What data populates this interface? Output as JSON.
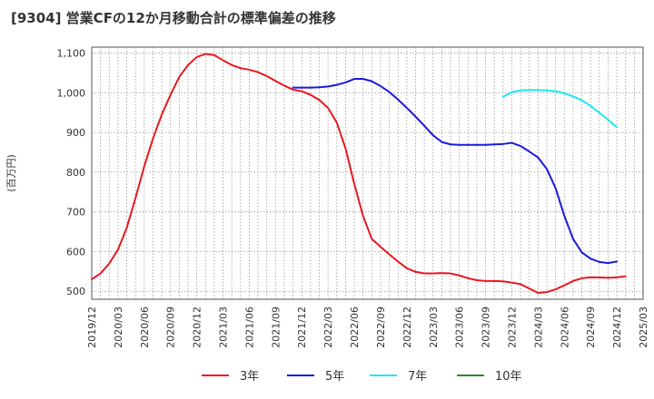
{
  "title": "[9304]  営業CFの12か月移動合計の標準偏差の推移",
  "chart_data": {
    "type": "line",
    "ylabel": "(百万円)",
    "ylim": [
      480,
      1115
    ],
    "yticks": [
      500,
      600,
      700,
      800,
      900,
      1000,
      1100
    ],
    "ytick_labels": [
      "500",
      "600",
      "700",
      "800",
      "900",
      "1,000",
      "1,100"
    ],
    "xlim": [
      "2019-12",
      "2025-03"
    ],
    "xticks": [
      "2019/12",
      "2020/03",
      "2020/06",
      "2020/09",
      "2020/12",
      "2021/03",
      "2021/06",
      "2021/09",
      "2021/12",
      "2022/03",
      "2022/06",
      "2022/09",
      "2022/12",
      "2023/03",
      "2023/06",
      "2023/09",
      "2023/12",
      "2024/03",
      "2024/06",
      "2024/09",
      "2024/12",
      "2025/03"
    ],
    "grid": true,
    "legend_position": "bottom",
    "series": [
      {
        "name": "3年",
        "color": "#e8191e",
        "points": [
          [
            "2019-12",
            530
          ],
          [
            "2020-01",
            545
          ],
          [
            "2020-02",
            570
          ],
          [
            "2020-03",
            605
          ],
          [
            "2020-04",
            660
          ],
          [
            "2020-05",
            735
          ],
          [
            "2020-06",
            815
          ],
          [
            "2020-07",
            885
          ],
          [
            "2020-08",
            945
          ],
          [
            "2020-09",
            995
          ],
          [
            "2020-10",
            1040
          ],
          [
            "2020-11",
            1070
          ],
          [
            "2020-12",
            1090
          ],
          [
            "2021-01",
            1098
          ],
          [
            "2021-02",
            1095
          ],
          [
            "2021-03",
            1082
          ],
          [
            "2021-04",
            1070
          ],
          [
            "2021-05",
            1062
          ],
          [
            "2021-06",
            1058
          ],
          [
            "2021-07",
            1052
          ],
          [
            "2021-08",
            1042
          ],
          [
            "2021-09",
            1030
          ],
          [
            "2021-10",
            1018
          ],
          [
            "2021-11",
            1008
          ],
          [
            "2021-12",
            1004
          ],
          [
            "2022-01",
            995
          ],
          [
            "2022-02",
            982
          ],
          [
            "2022-03",
            962
          ],
          [
            "2022-04",
            925
          ],
          [
            "2022-05",
            860
          ],
          [
            "2022-06",
            770
          ],
          [
            "2022-07",
            690
          ],
          [
            "2022-08",
            632
          ],
          [
            "2022-09",
            612
          ],
          [
            "2022-10",
            593
          ],
          [
            "2022-11",
            575
          ],
          [
            "2022-12",
            558
          ],
          [
            "2023-01",
            549
          ],
          [
            "2023-02",
            545
          ],
          [
            "2023-03",
            545
          ],
          [
            "2023-04",
            546
          ],
          [
            "2023-05",
            545
          ],
          [
            "2023-06",
            540
          ],
          [
            "2023-07",
            533
          ],
          [
            "2023-08",
            528
          ],
          [
            "2023-09",
            526
          ],
          [
            "2023-10",
            526
          ],
          [
            "2023-11",
            525
          ],
          [
            "2023-12",
            522
          ],
          [
            "2024-01",
            518
          ],
          [
            "2024-02",
            507
          ],
          [
            "2024-03",
            496
          ],
          [
            "2024-04",
            498
          ],
          [
            "2024-05",
            505
          ],
          [
            "2024-06",
            515
          ],
          [
            "2024-07",
            526
          ],
          [
            "2024-08",
            533
          ],
          [
            "2024-09",
            535
          ],
          [
            "2024-10",
            535
          ],
          [
            "2024-11",
            534
          ],
          [
            "2024-12",
            535
          ],
          [
            "2025-01",
            538
          ]
        ]
      },
      {
        "name": "5年",
        "color": "#1a1adb",
        "points": [
          [
            "2021-11",
            1013
          ],
          [
            "2021-12",
            1013
          ],
          [
            "2022-01",
            1013
          ],
          [
            "2022-02",
            1014
          ],
          [
            "2022-03",
            1016
          ],
          [
            "2022-04",
            1020
          ],
          [
            "2022-05",
            1026
          ],
          [
            "2022-06",
            1035
          ],
          [
            "2022-07",
            1035
          ],
          [
            "2022-08",
            1029
          ],
          [
            "2022-09",
            1017
          ],
          [
            "2022-10",
            1002
          ],
          [
            "2022-11",
            983
          ],
          [
            "2022-12",
            962
          ],
          [
            "2023-01",
            940
          ],
          [
            "2023-02",
            917
          ],
          [
            "2023-03",
            893
          ],
          [
            "2023-04",
            876
          ],
          [
            "2023-05",
            870
          ],
          [
            "2023-06",
            869
          ],
          [
            "2023-07",
            869
          ],
          [
            "2023-08",
            869
          ],
          [
            "2023-09",
            869
          ],
          [
            "2023-10",
            870
          ],
          [
            "2023-11",
            871
          ],
          [
            "2023-12",
            874
          ],
          [
            "2024-01",
            866
          ],
          [
            "2024-02",
            852
          ],
          [
            "2024-03",
            837
          ],
          [
            "2024-04",
            808
          ],
          [
            "2024-05",
            760
          ],
          [
            "2024-06",
            690
          ],
          [
            "2024-07",
            632
          ],
          [
            "2024-08",
            598
          ],
          [
            "2024-09",
            582
          ],
          [
            "2024-10",
            574
          ],
          [
            "2024-11",
            571
          ],
          [
            "2024-12",
            575
          ]
        ]
      },
      {
        "name": "7年",
        "color": "#1ee8f2",
        "points": [
          [
            "2023-11",
            990
          ],
          [
            "2023-12",
            1002
          ],
          [
            "2024-01",
            1006
          ],
          [
            "2024-02",
            1007
          ],
          [
            "2024-03",
            1007
          ],
          [
            "2024-04",
            1006
          ],
          [
            "2024-05",
            1004
          ],
          [
            "2024-06",
            999
          ],
          [
            "2024-07",
            991
          ],
          [
            "2024-08",
            981
          ],
          [
            "2024-09",
            967
          ],
          [
            "2024-10",
            950
          ],
          [
            "2024-11",
            932
          ],
          [
            "2024-12",
            913
          ]
        ]
      },
      {
        "name": "10年",
        "color": "#2b8a2b",
        "points": []
      }
    ]
  }
}
